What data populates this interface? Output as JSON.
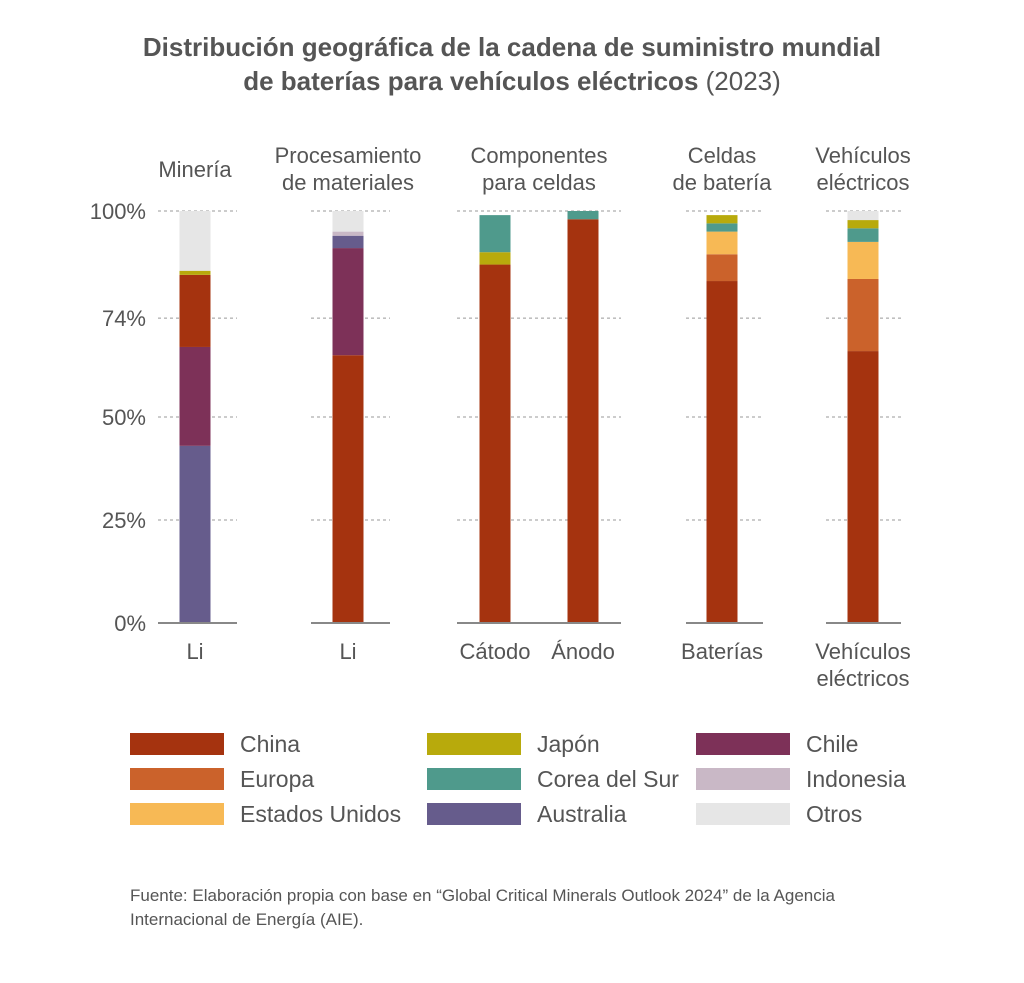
{
  "title": {
    "line1": "Distribución geográfica de la cadena de suministro mundial",
    "line2_bold": "de baterías para vehículos eléctricos",
    "line2_rest": " (2023)"
  },
  "chart_data": {
    "type": "bar",
    "stacked": true,
    "title": "Distribución geográfica de la cadena de suministro mundial de baterías para vehículos eléctricos (2023)",
    "ylabel": "",
    "ylim": [
      0,
      100
    ],
    "ytick_values": [
      0,
      25,
      50,
      74,
      100
    ],
    "ytick_labels": [
      "0%",
      "25%",
      "50%",
      "74%",
      "100%"
    ],
    "grid": true,
    "groups": [
      {
        "label": [
          "Minería"
        ],
        "categories": [
          "Li"
        ]
      },
      {
        "label": [
          "Procesamiento",
          "de materiales"
        ],
        "categories": [
          "Li"
        ]
      },
      {
        "label": [
          "Componentes",
          "para celdas"
        ],
        "categories": [
          "Cátodo",
          "Ánodo"
        ]
      },
      {
        "label": [
          "Celdas",
          "de batería"
        ],
        "categories": [
          "Baterías"
        ]
      },
      {
        "label": [
          "Vehículos",
          "eléctricos"
        ],
        "categories": [
          "Vehículos eléctricos"
        ]
      }
    ],
    "categories": [
      "Li",
      "Li",
      "Cátodo",
      "Ánodo",
      "Baterías",
      "Vehículos eléctricos"
    ],
    "series": [
      {
        "name": "Australia",
        "color": "#665c8c",
        "values": [
          43,
          0,
          0,
          0,
          0,
          0
        ]
      },
      {
        "name": "China",
        "color": "#a5330f",
        "values": [
          0,
          65,
          87,
          98,
          83,
          66
        ]
      },
      {
        "name": "Chile",
        "color": "#7d3158",
        "values": [
          24,
          26,
          0,
          0,
          0,
          0
        ]
      },
      {
        "name": "Europa",
        "color": "#cb622b",
        "values": [
          0,
          0,
          0,
          0,
          6.5,
          17.5
        ]
      },
      {
        "name": "Estados Unidos",
        "color": "#f7b955",
        "values": [
          0,
          0,
          0,
          0,
          5.5,
          9
        ]
      },
      {
        "name": "China",
        "color": "#a5330f",
        "values": [
          17.5,
          0,
          0,
          0,
          0,
          0
        ]
      },
      {
        "name": "Australia",
        "color": "#665c8c",
        "values": [
          0,
          3,
          0,
          0,
          0,
          0
        ]
      },
      {
        "name": "Indonesia",
        "color": "#c9b8c6",
        "values": [
          0,
          1,
          0,
          0,
          0,
          0
        ]
      },
      {
        "name": "Japón",
        "color": "#b8aa0c",
        "values": [
          1,
          0,
          3,
          0,
          0,
          0
        ]
      },
      {
        "name": "Corea del Sur",
        "color": "#4f9a8c",
        "values": [
          0,
          0,
          9,
          2,
          2,
          3.3
        ]
      },
      {
        "name": "Japón",
        "color": "#b8aa0c",
        "values": [
          0,
          0,
          0,
          0,
          2,
          2
        ]
      },
      {
        "name": "Otros",
        "color": "#e6e6e6",
        "values": [
          14.5,
          5,
          0,
          0,
          0,
          2.2
        ]
      }
    ],
    "legend": [
      {
        "name": "China",
        "color": "#a5330f"
      },
      {
        "name": "Europa",
        "color": "#cb622b"
      },
      {
        "name": "Estados Unidos",
        "color": "#f7b955"
      },
      {
        "name": "Japón",
        "color": "#b8aa0c"
      },
      {
        "name": "Corea del Sur",
        "color": "#4f9a8c"
      },
      {
        "name": "Australia",
        "color": "#665c8c"
      },
      {
        "name": "Chile",
        "color": "#7d3158"
      },
      {
        "name": "Indonesia",
        "color": "#c9b8c6"
      },
      {
        "name": "Otros",
        "color": "#e6e6e6"
      }
    ],
    "legend_position": "bottom"
  },
  "source": {
    "line1": "Fuente: Elaboración propia con base en “Global Critical Minerals Outlook 2024” de la Agencia",
    "line2": "Internacional de Energía (AIE)."
  }
}
